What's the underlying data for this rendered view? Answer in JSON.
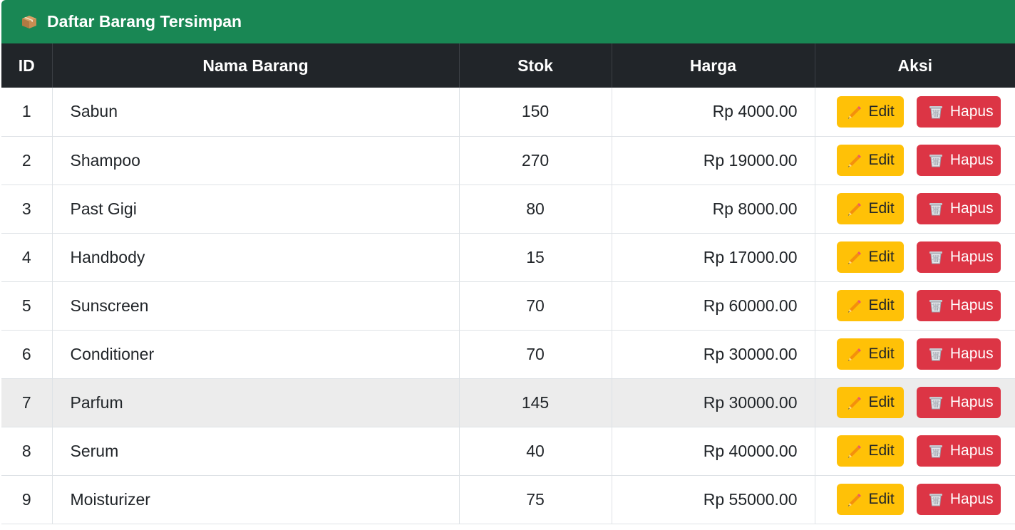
{
  "header": {
    "icon": "package-icon",
    "title": "Daftar Barang Tersimpan"
  },
  "table": {
    "columns": [
      "ID",
      "Nama Barang",
      "Stok",
      "Harga",
      "Aksi"
    ],
    "rows": [
      {
        "id": "1",
        "name": "Sabun",
        "stok": "150",
        "harga": "Rp 4000.00"
      },
      {
        "id": "2",
        "name": "Shampoo",
        "stok": "270",
        "harga": "Rp 19000.00"
      },
      {
        "id": "3",
        "name": "Past Gigi",
        "stok": "80",
        "harga": "Rp 8000.00"
      },
      {
        "id": "4",
        "name": "Handbody",
        "stok": "15",
        "harga": "Rp 17000.00"
      },
      {
        "id": "5",
        "name": "Sunscreen",
        "stok": "70",
        "harga": "Rp 60000.00"
      },
      {
        "id": "6",
        "name": "Conditioner",
        "stok": "70",
        "harga": "Rp 30000.00"
      },
      {
        "id": "7",
        "name": "Parfum",
        "stok": "145",
        "harga": "Rp 30000.00"
      },
      {
        "id": "8",
        "name": "Serum",
        "stok": "40",
        "harga": "Rp 40000.00"
      },
      {
        "id": "9",
        "name": "Moisturizer",
        "stok": "75",
        "harga": "Rp 55000.00"
      }
    ],
    "hovered_row": "7"
  },
  "actions": {
    "edit_label": "Edit",
    "edit_icon": "pencil-icon",
    "delete_label": "Hapus",
    "delete_icon": "trash-icon"
  },
  "colors": {
    "header_bg": "#198754",
    "table_head_bg": "#212529",
    "edit_button": "#ffc107",
    "delete_button": "#dc3545",
    "hover_row": "#ececec"
  }
}
